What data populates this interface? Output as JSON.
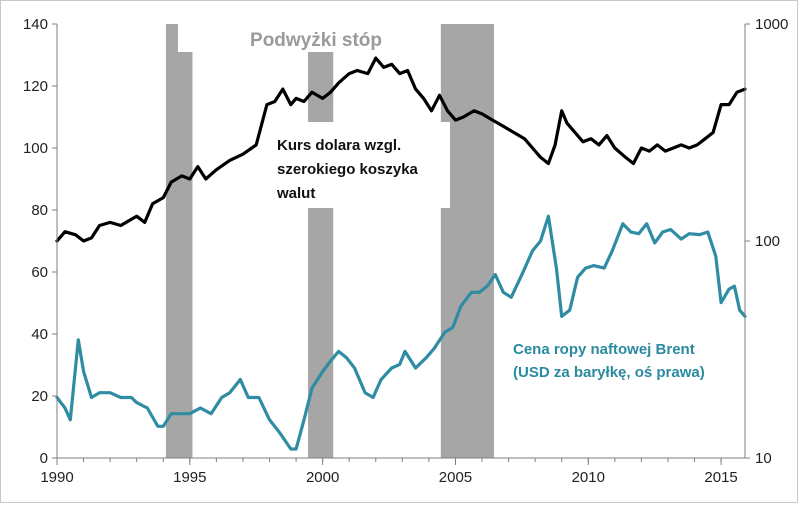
{
  "chart_data": {
    "type": "line",
    "title": "Podwyżki stóp",
    "x_ticks": [
      "1990",
      "1995",
      "2000",
      "2005",
      "2010",
      "2015"
    ],
    "x_range": [
      1990,
      2015.9
    ],
    "y_left": {
      "ticks": [
        "0",
        "20",
        "40",
        "60",
        "80",
        "100",
        "120",
        "140"
      ],
      "range": [
        0,
        140
      ]
    },
    "y_right": {
      "scale": "log",
      "ticks": [
        "10",
        "100",
        "1000"
      ],
      "range": [
        10,
        1000
      ]
    },
    "grid": false,
    "shaded_periods": [
      {
        "start": 1994.1,
        "end": 1995.1
      },
      {
        "start": 1999.45,
        "end": 2000.4
      },
      {
        "start": 2004.45,
        "end": 2006.45
      }
    ],
    "annotations": {
      "dollar": [
        "Kurs dolara wzgl.",
        "szerokiego  koszyka",
        "walut"
      ],
      "oil": [
        "Cena ropy naftowej Brent",
        "(USD za baryłkę, oś prawa)"
      ]
    },
    "series": [
      {
        "axis": "left",
        "color": "#000000",
        "points": [
          [
            1990.0,
            70
          ],
          [
            1990.3,
            73
          ],
          [
            1990.7,
            72
          ],
          [
            1991.0,
            70
          ],
          [
            1991.3,
            71
          ],
          [
            1991.6,
            75
          ],
          [
            1992.0,
            76
          ],
          [
            1992.4,
            75
          ],
          [
            1992.8,
            77
          ],
          [
            1993.0,
            78
          ],
          [
            1993.3,
            76
          ],
          [
            1993.6,
            82
          ],
          [
            1994.0,
            84
          ],
          [
            1994.3,
            89
          ],
          [
            1994.7,
            91
          ],
          [
            1995.0,
            90
          ],
          [
            1995.3,
            94
          ],
          [
            1995.6,
            90
          ],
          [
            1996.0,
            93
          ],
          [
            1996.5,
            96
          ],
          [
            1997.0,
            98
          ],
          [
            1997.5,
            101
          ],
          [
            1997.9,
            114
          ],
          [
            1998.2,
            115
          ],
          [
            1998.5,
            119
          ],
          [
            1998.8,
            114
          ],
          [
            1999.0,
            116
          ],
          [
            1999.3,
            115
          ],
          [
            1999.6,
            118
          ],
          [
            2000.0,
            116
          ],
          [
            2000.3,
            118
          ],
          [
            2000.6,
            121
          ],
          [
            2001.0,
            124
          ],
          [
            2001.3,
            125
          ],
          [
            2001.7,
            124
          ],
          [
            2002.0,
            129
          ],
          [
            2002.3,
            126
          ],
          [
            2002.6,
            127
          ],
          [
            2002.9,
            124
          ],
          [
            2003.2,
            125
          ],
          [
            2003.5,
            119
          ],
          [
            2003.8,
            116
          ],
          [
            2004.1,
            112
          ],
          [
            2004.4,
            117
          ],
          [
            2004.7,
            112
          ],
          [
            2005.0,
            109
          ],
          [
            2005.3,
            110
          ],
          [
            2005.7,
            112
          ],
          [
            2006.0,
            111
          ],
          [
            2006.4,
            109
          ],
          [
            2006.8,
            107
          ],
          [
            2007.2,
            105
          ],
          [
            2007.6,
            103
          ],
          [
            2007.9,
            100
          ],
          [
            2008.2,
            97
          ],
          [
            2008.5,
            95
          ],
          [
            2008.75,
            101
          ],
          [
            2009.0,
            112
          ],
          [
            2009.2,
            108
          ],
          [
            2009.5,
            105
          ],
          [
            2009.8,
            102
          ],
          [
            2010.1,
            103
          ],
          [
            2010.4,
            101
          ],
          [
            2010.7,
            104
          ],
          [
            2011.0,
            100
          ],
          [
            2011.4,
            97
          ],
          [
            2011.7,
            95
          ],
          [
            2012.0,
            100
          ],
          [
            2012.3,
            99
          ],
          [
            2012.6,
            101
          ],
          [
            2012.9,
            99
          ],
          [
            2013.2,
            100
          ],
          [
            2013.5,
            101
          ],
          [
            2013.8,
            100
          ],
          [
            2014.1,
            101
          ],
          [
            2014.4,
            103
          ],
          [
            2014.7,
            105
          ],
          [
            2015.0,
            114
          ],
          [
            2015.3,
            114
          ],
          [
            2015.6,
            118
          ],
          [
            2015.9,
            119
          ]
        ]
      },
      {
        "axis": "right",
        "color": "#2e8ca3",
        "points": [
          [
            1990.0,
            19
          ],
          [
            1990.3,
            17
          ],
          [
            1990.5,
            15
          ],
          [
            1990.8,
            35
          ],
          [
            1991.0,
            25
          ],
          [
            1991.3,
            19
          ],
          [
            1991.6,
            20
          ],
          [
            1992.0,
            20
          ],
          [
            1992.4,
            19
          ],
          [
            1992.8,
            19
          ],
          [
            1993.0,
            18
          ],
          [
            1993.4,
            17
          ],
          [
            1993.8,
            14
          ],
          [
            1994.0,
            14
          ],
          [
            1994.3,
            16
          ],
          [
            1994.7,
            16
          ],
          [
            1995.0,
            16
          ],
          [
            1995.4,
            17
          ],
          [
            1995.8,
            16
          ],
          [
            1996.2,
            19
          ],
          [
            1996.5,
            20
          ],
          [
            1996.9,
            23
          ],
          [
            1997.2,
            19
          ],
          [
            1997.6,
            19
          ],
          [
            1998.0,
            15
          ],
          [
            1998.4,
            13
          ],
          [
            1998.8,
            11
          ],
          [
            1999.0,
            11
          ],
          [
            1999.3,
            15
          ],
          [
            1999.6,
            21
          ],
          [
            2000.0,
            25
          ],
          [
            2000.3,
            28
          ],
          [
            2000.6,
            31
          ],
          [
            2000.9,
            29
          ],
          [
            2001.2,
            26
          ],
          [
            2001.6,
            20
          ],
          [
            2001.9,
            19
          ],
          [
            2002.2,
            23
          ],
          [
            2002.6,
            26
          ],
          [
            2002.9,
            27
          ],
          [
            2003.1,
            31
          ],
          [
            2003.5,
            26
          ],
          [
            2003.9,
            29
          ],
          [
            2004.2,
            32
          ],
          [
            2004.6,
            38
          ],
          [
            2004.9,
            40
          ],
          [
            2005.2,
            50
          ],
          [
            2005.6,
            58
          ],
          [
            2005.9,
            58
          ],
          [
            2006.2,
            62
          ],
          [
            2006.5,
            70
          ],
          [
            2006.8,
            58
          ],
          [
            2007.1,
            55
          ],
          [
            2007.5,
            70
          ],
          [
            2007.9,
            90
          ],
          [
            2008.2,
            100
          ],
          [
            2008.5,
            130
          ],
          [
            2008.8,
            75
          ],
          [
            2009.0,
            45
          ],
          [
            2009.3,
            48
          ],
          [
            2009.6,
            68
          ],
          [
            2009.9,
            75
          ],
          [
            2010.2,
            77
          ],
          [
            2010.6,
            75
          ],
          [
            2010.9,
            90
          ],
          [
            2011.3,
            120
          ],
          [
            2011.6,
            110
          ],
          [
            2011.9,
            108
          ],
          [
            2012.2,
            120
          ],
          [
            2012.5,
            98
          ],
          [
            2012.8,
            110
          ],
          [
            2013.1,
            113
          ],
          [
            2013.5,
            102
          ],
          [
            2013.8,
            108
          ],
          [
            2014.2,
            107
          ],
          [
            2014.5,
            110
          ],
          [
            2014.8,
            85
          ],
          [
            2015.0,
            52
          ],
          [
            2015.3,
            60
          ],
          [
            2015.5,
            62
          ],
          [
            2015.7,
            48
          ],
          [
            2015.9,
            45
          ]
        ]
      }
    ]
  }
}
